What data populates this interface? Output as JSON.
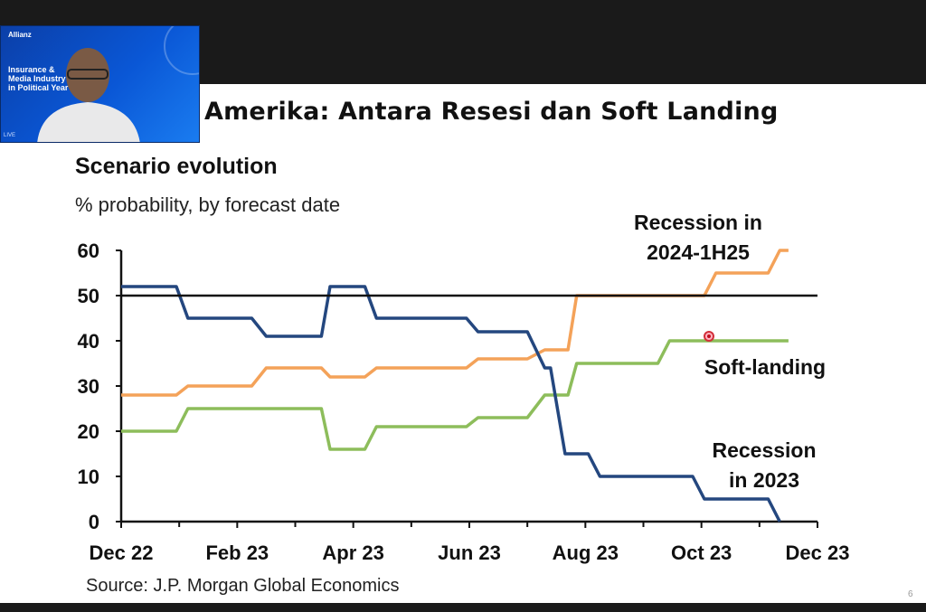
{
  "slide": {
    "title": "Amerika: Antara Resesi dan Soft Landing",
    "page_number": "6"
  },
  "webcam": {
    "brand": "Allianz",
    "event_heading": "Insurance &\nMedia Industry\nin Political Year",
    "live_label": "LIVE"
  },
  "chart_data": {
    "type": "line",
    "title": "Scenario evolution",
    "subtitle": "% probability, by forecast date",
    "source": "Source: J.P. Morgan Global Economics",
    "ylim": [
      0,
      60
    ],
    "yticks": [
      0,
      10,
      20,
      30,
      40,
      50,
      60
    ],
    "xlim": [
      0,
      12
    ],
    "xtick_labels": [
      "Dec 22",
      "Feb 23",
      "Apr 23",
      "Jun 23",
      "Aug 23",
      "Oct 23",
      "Dec 23"
    ],
    "reference_line": 50,
    "grid": false,
    "series": [
      {
        "name": "Recession in 2023",
        "color": "#24477f",
        "x": [
          0,
          0.95,
          1.15,
          2.25,
          2.5,
          3.45,
          3.6,
          4.2,
          4.4,
          5.95,
          6.15,
          7.0,
          7.3,
          7.4,
          7.65,
          8.05,
          8.25,
          8.85,
          9.0,
          9.85,
          10.05,
          11.15,
          11.35
        ],
        "y": [
          52,
          52,
          45,
          45,
          41,
          41,
          52,
          52,
          45,
          45,
          42,
          42,
          34,
          34,
          15,
          15,
          10,
          10,
          10,
          10,
          5,
          5,
          0
        ]
      },
      {
        "name": "Recession in 2024-1H25",
        "color": "#f4a259",
        "x": [
          0,
          0.95,
          1.15,
          2.25,
          2.5,
          3.45,
          3.6,
          4.2,
          4.4,
          5.95,
          6.15,
          7.0,
          7.3,
          7.7,
          7.85,
          10.05,
          10.25,
          11.15,
          11.35,
          11.5
        ],
        "y": [
          28,
          28,
          30,
          30,
          34,
          34,
          32,
          32,
          34,
          34,
          36,
          36,
          38,
          38,
          50,
          50,
          55,
          55,
          60,
          60
        ],
        "hidden_ranges": [
          [
            38,
            50
          ],
          [
            8.05,
            9.9
          ]
        ]
      },
      {
        "name": "Soft-landing",
        "color": "#8dbd5b",
        "x": [
          0,
          0.95,
          1.15,
          3.45,
          3.6,
          4.2,
          4.4,
          5.95,
          6.15,
          7.0,
          7.3,
          7.7,
          7.85,
          9.25,
          9.45,
          11.5
        ],
        "y": [
          20,
          20,
          25,
          25,
          16,
          16,
          21,
          21,
          23,
          23,
          28,
          28,
          35,
          35,
          40,
          40
        ]
      }
    ],
    "annotations": [
      {
        "text": "Recession in",
        "line2": "2024-1H25"
      },
      {
        "text": "Soft-landing",
        "line2": ""
      },
      {
        "text": "Recession",
        "line2": "in 2023"
      }
    ]
  }
}
